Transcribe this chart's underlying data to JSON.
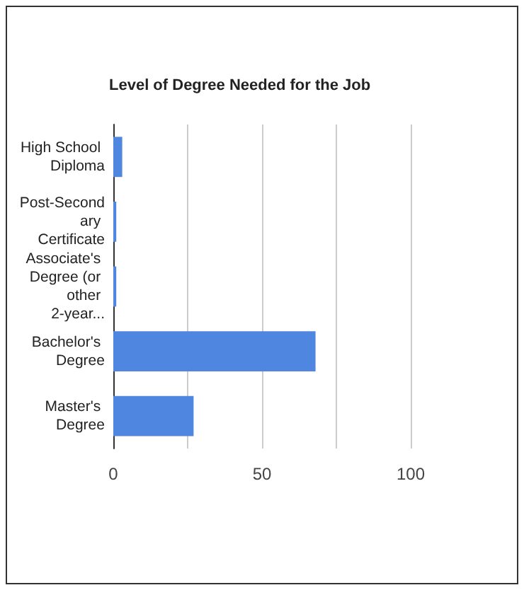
{
  "chart_data": {
    "type": "bar",
    "orientation": "horizontal",
    "title": "Level of Degree Needed for the Job",
    "categories": [
      "High School Diploma",
      "Post-Secondary Certificate",
      "Associate's Degree (or other 2-year...",
      "Bachelor's Degree",
      "Master's Degree"
    ],
    "values": [
      3,
      1,
      1,
      68,
      27
    ],
    "color": "#4f86e0",
    "xlim": [
      0,
      100
    ],
    "xticks": [
      0,
      {
        "value": 25,
        "label": null
      },
      50,
      {
        "value": 75,
        "label": null
      },
      100
    ],
    "grid": "x"
  }
}
